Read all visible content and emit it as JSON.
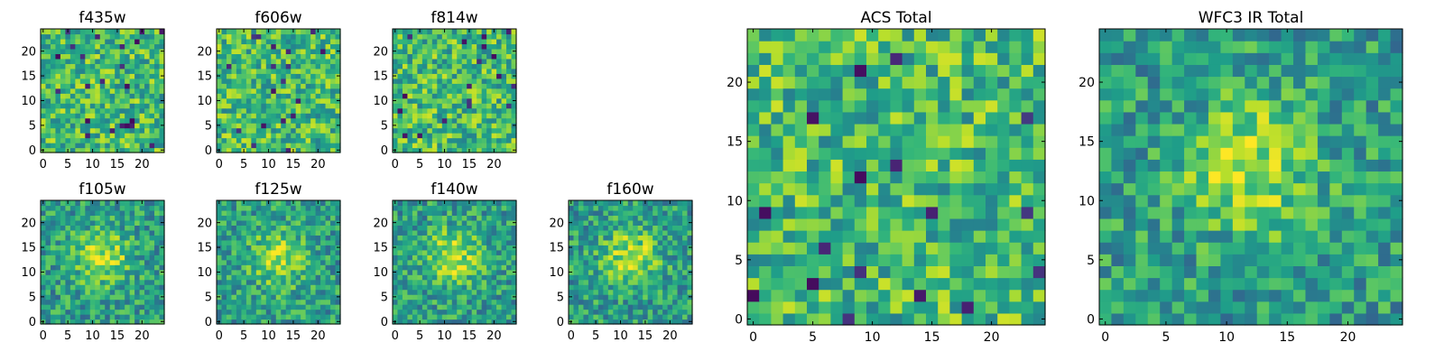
{
  "chart_data": [
    {
      "type": "heatmap",
      "title": "f435w",
      "xticks": [
        "0",
        "5",
        "10",
        "15",
        "20"
      ],
      "yticks": [
        "0",
        "5",
        "10",
        "15",
        "20"
      ],
      "grid_size": 25,
      "colormap": "viridis",
      "character": "noise",
      "values": []
    },
    {
      "type": "heatmap",
      "title": "f606w",
      "xticks": [
        "0",
        "5",
        "10",
        "15",
        "20"
      ],
      "yticks": [
        "0",
        "5",
        "10",
        "15",
        "20"
      ],
      "grid_size": 25,
      "colormap": "viridis",
      "character": "noise",
      "values": []
    },
    {
      "type": "heatmap",
      "title": "f814w",
      "xticks": [
        "0",
        "5",
        "10",
        "15",
        "20"
      ],
      "yticks": [
        "0",
        "5",
        "10",
        "15",
        "20"
      ],
      "grid_size": 25,
      "colormap": "viridis",
      "character": "noise",
      "values": []
    },
    {
      "type": "heatmap",
      "title": "f105w",
      "xticks": [
        "0",
        "5",
        "10",
        "15",
        "20"
      ],
      "yticks": [
        "0",
        "5",
        "10",
        "15",
        "20"
      ],
      "grid_size": 25,
      "colormap": "viridis",
      "character": "central-source",
      "values": []
    },
    {
      "type": "heatmap",
      "title": "f125w",
      "xticks": [
        "0",
        "5",
        "10",
        "15",
        "20"
      ],
      "yticks": [
        "0",
        "5",
        "10",
        "15",
        "20"
      ],
      "grid_size": 25,
      "colormap": "viridis",
      "character": "central-source",
      "values": []
    },
    {
      "type": "heatmap",
      "title": "f140w",
      "xticks": [
        "0",
        "5",
        "10",
        "15",
        "20"
      ],
      "yticks": [
        "0",
        "5",
        "10",
        "15",
        "20"
      ],
      "grid_size": 25,
      "colormap": "viridis",
      "character": "central-source",
      "values": []
    },
    {
      "type": "heatmap",
      "title": "f160w",
      "xticks": [
        "0",
        "5",
        "10",
        "15",
        "20"
      ],
      "yticks": [
        "0",
        "5",
        "10",
        "15",
        "20"
      ],
      "grid_size": 25,
      "colormap": "viridis",
      "character": "central-source",
      "values": []
    },
    {
      "type": "heatmap",
      "title": "ACS Total",
      "xticks": [
        "0",
        "5",
        "10",
        "15",
        "20"
      ],
      "yticks": [
        "0",
        "5",
        "10",
        "15",
        "20"
      ],
      "grid_size": 25,
      "colormap": "viridis",
      "character": "noise",
      "values": []
    },
    {
      "type": "heatmap",
      "title": "WFC3 IR Total",
      "xticks": [
        "0",
        "5",
        "10",
        "15",
        "20"
      ],
      "yticks": [
        "0",
        "5",
        "10",
        "15",
        "20"
      ],
      "grid_size": 25,
      "colormap": "viridis",
      "character": "central-source",
      "values": []
    }
  ]
}
